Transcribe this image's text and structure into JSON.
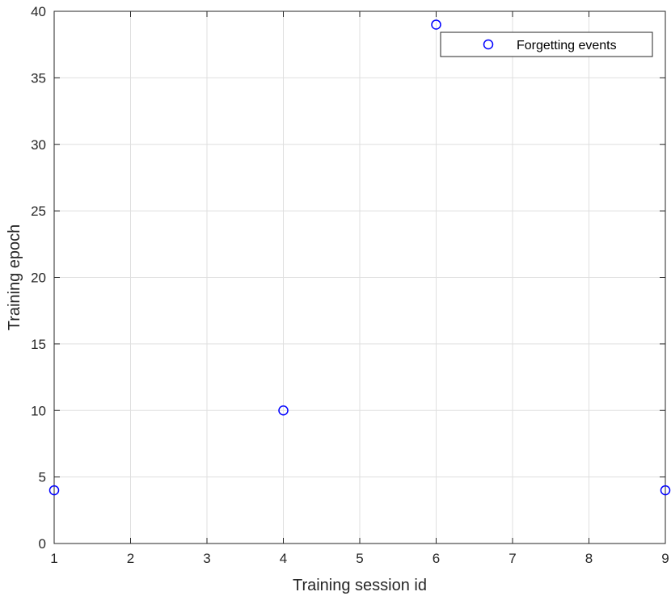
{
  "chart_data": {
    "type": "scatter",
    "title": "",
    "xlabel": "Training session id",
    "ylabel": "Training epoch",
    "xlim": [
      1,
      9
    ],
    "ylim": [
      0,
      40
    ],
    "xticks": [
      1,
      2,
      3,
      4,
      5,
      6,
      7,
      8,
      9
    ],
    "yticks": [
      0,
      5,
      10,
      15,
      20,
      25,
      30,
      35,
      40
    ],
    "grid": true,
    "legend_position": "top-right",
    "series": [
      {
        "name": "Forgetting events",
        "marker": "circle-open",
        "color": "#0000ff",
        "points": [
          {
            "x": 1,
            "y": 4
          },
          {
            "x": 4,
            "y": 10
          },
          {
            "x": 6,
            "y": 39
          },
          {
            "x": 9,
            "y": 4
          }
        ]
      }
    ]
  },
  "colors": {
    "axis": "#262626",
    "grid": "#dfdfdf",
    "marker": "#0000ff"
  }
}
